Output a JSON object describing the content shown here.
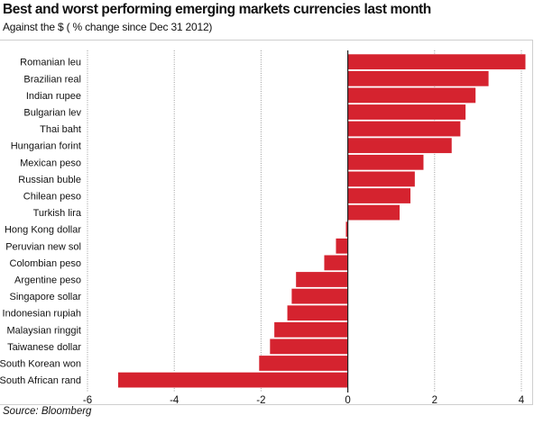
{
  "header": {
    "title": "Best and worst performing emerging markets currencies last month",
    "subtitle": "Against the $ ( % change since Dec 31 2012)"
  },
  "footer": {
    "source": "Source: Bloomberg"
  },
  "colors": {
    "bar": "#d5232f",
    "bar_stroke": "#ffffff",
    "grid": "#9a9a9a",
    "axis": "#222222"
  },
  "chart_data": {
    "type": "bar",
    "orientation": "horizontal",
    "categories": [
      "Romanian leu",
      "Brazilian real",
      "Indian rupee",
      "Bulgarian lev",
      "Thai baht",
      "Hungarian forint",
      "Mexican peso",
      "Russian buble",
      "Chilean peso",
      "Turkish lira",
      "Hong Kong dollar",
      "Peruvian new sol",
      "Colombian peso",
      "Argentine peso",
      "Singapore sollar",
      "Indonesian rupiah",
      "Malaysian ringgit",
      "Taiwanese dollar",
      "South Korean won",
      "South African rand"
    ],
    "values": [
      4.1,
      3.25,
      2.95,
      2.72,
      2.6,
      2.4,
      1.75,
      1.55,
      1.45,
      1.2,
      -0.05,
      -0.28,
      -0.55,
      -1.2,
      -1.3,
      -1.4,
      -1.7,
      -1.8,
      -2.05,
      -5.3
    ],
    "xlim": [
      -6,
      4.2
    ],
    "xticks": [
      -6,
      -4,
      -2,
      0,
      2,
      4
    ],
    "xtick_labels": [
      "-6",
      "-4",
      "-2",
      "0",
      "2",
      "4"
    ],
    "grid": "vertical dashed at ticks",
    "legend": "none"
  }
}
